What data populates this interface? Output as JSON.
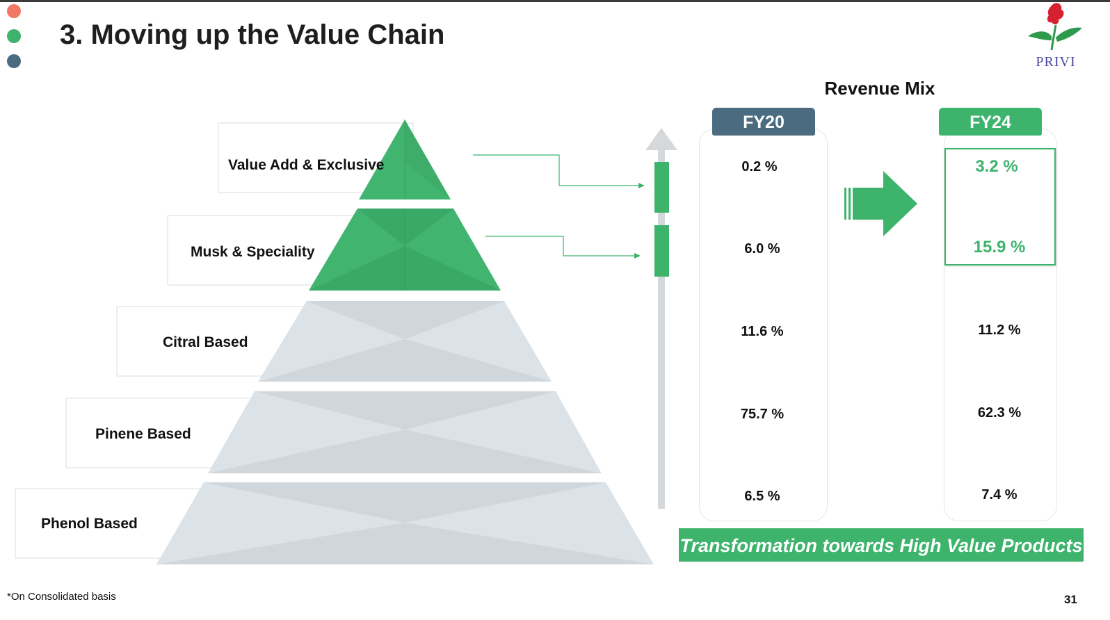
{
  "slide": {
    "title": "3. Moving up the Value Chain",
    "footnote": "*On Consolidated basis",
    "page_number": "31",
    "logo_text": "PRIVI"
  },
  "pyramid": {
    "levels": [
      {
        "label": "Value Add & Exclusive",
        "highlight": true
      },
      {
        "label": "Musk & Speciality",
        "highlight": true
      },
      {
        "label": "Citral Based",
        "highlight": false
      },
      {
        "label": "Pinene Based",
        "highlight": false
      },
      {
        "label": "Phenol Based",
        "highlight": false
      }
    ]
  },
  "revenue_mix": {
    "title": "Revenue Mix",
    "fy20": {
      "header": "FY20",
      "values": [
        "0.2 %",
        "6.0 %",
        "11.6 %",
        "75.7 %",
        "6.5 %"
      ]
    },
    "fy24": {
      "header": "FY24",
      "values": [
        "3.2 %",
        "15.9 %",
        "11.2 %",
        "62.3 %",
        "7.4 %"
      ]
    }
  },
  "banner": "Transformation towards High Value Products",
  "colors": {
    "green": "#3db36c",
    "slate": "#4a6b80",
    "grey_tier": "#d5dde3",
    "dot_red": "#f07864",
    "dot_green": "#3db36c",
    "dot_slate": "#4a6b80"
  }
}
